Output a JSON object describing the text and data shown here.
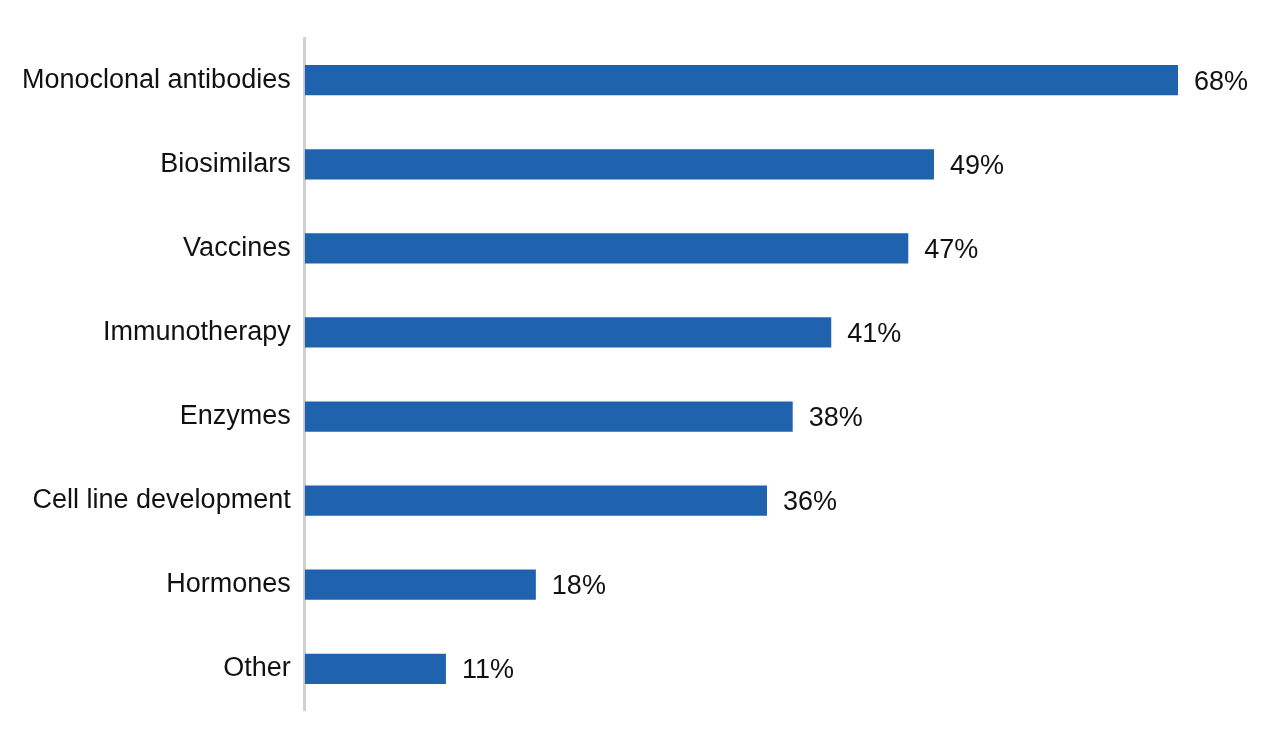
{
  "chart_data": {
    "type": "bar",
    "orientation": "horizontal",
    "categories": [
      "Monoclonal antibodies",
      "Biosimilars",
      "Vaccines",
      "Immunotherapy",
      "Enzymes",
      "Cell line development",
      "Hormones",
      "Other"
    ],
    "values": [
      68,
      49,
      47,
      41,
      38,
      36,
      18,
      11
    ],
    "value_labels": [
      "68%",
      "49%",
      "47%",
      "41%",
      "38%",
      "36%",
      "18%",
      "11%"
    ],
    "color": "#1f63ae",
    "xlim": [
      0,
      68
    ],
    "tick_labels": "y",
    "grid": false,
    "legend": false
  }
}
